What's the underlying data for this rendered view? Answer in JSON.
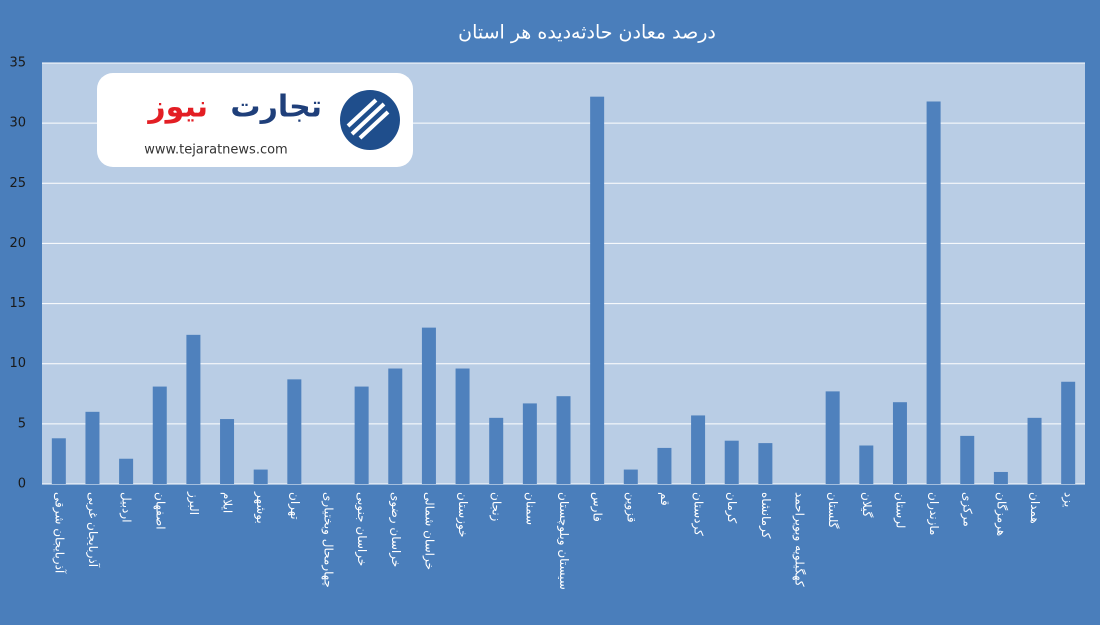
{
  "chart_data": {
    "type": "bar",
    "title": "درصد معادن حادثه‌دیده هر استان",
    "categories": [
      "آذربایجان شرقی",
      "آذربایجان غربی",
      "اردبیل",
      "اصفهان",
      "البرز",
      "ایلام",
      "بوشهر",
      "تهران",
      "چهارمحال وبختیاری",
      "خراسان جنوبی",
      "خراسان رضوی",
      "خراسان شمالی",
      "خوزستان",
      "زنجان",
      "سمنان",
      "سیستان وبلوچستان",
      "فارس",
      "قزوین",
      "قم",
      "کردستان",
      "کرمان",
      "کرمانشاه",
      "کهگیلویه وبویراحمد",
      "گلستان",
      "گیلان",
      "لرستان",
      "مازندران",
      "مرکزی",
      "هرمزگان",
      "همدان",
      "یزد"
    ],
    "values": [
      3.8,
      6.0,
      2.1,
      8.1,
      12.4,
      5.4,
      1.2,
      8.7,
      0,
      8.1,
      9.6,
      13.0,
      9.6,
      5.5,
      6.7,
      7.3,
      32.2,
      1.2,
      3.0,
      5.7,
      3.6,
      3.4,
      0,
      7.7,
      3.2,
      6.8,
      31.8,
      4.0,
      1.0,
      5.5,
      8.5
    ],
    "color": "#4f81bd",
    "ylim": [
      0,
      35
    ],
    "yticks": [
      0,
      5,
      10,
      15,
      20,
      25,
      30,
      35
    ],
    "grid": true
  },
  "logo": {
    "words": [
      "تجارت",
      "نیوز"
    ],
    "url": "www.tejaratnews.com"
  }
}
